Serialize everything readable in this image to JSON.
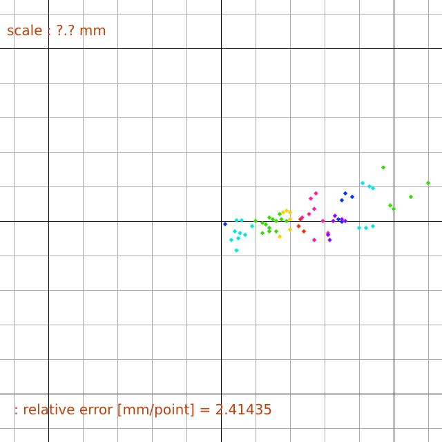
{
  "scale_text": "scale : ?.? mm",
  "error_text": ": relative error [mm/point] = 2.41435",
  "colors": {
    "grid": "#aaaaaa",
    "axis": "#000000",
    "text": "#c0410a"
  },
  "chart_data": {
    "type": "scatter",
    "title": "",
    "xlabel": "",
    "ylabel": "",
    "grid": true,
    "xlim": [
      -6.4,
      6.4
    ],
    "ylim": [
      -6.4,
      6.4
    ],
    "series": [
      {
        "color": "#0033ff",
        "points": [
          [
            0.12,
            -0.09
          ],
          [
            3.6,
            0.8
          ],
          [
            3.8,
            0.7
          ],
          [
            3.5,
            0.6
          ],
          [
            3.4,
            0.05
          ],
          [
            3.5,
            -0.02
          ]
        ]
      },
      {
        "color": "#00e5e5",
        "points": [
          [
            0.45,
            0.02
          ],
          [
            0.6,
            0.02
          ],
          [
            0.4,
            -0.3
          ],
          [
            0.55,
            -0.35
          ],
          [
            0.7,
            -0.4
          ],
          [
            0.3,
            -0.55
          ],
          [
            0.5,
            -0.5
          ],
          [
            0.9,
            -0.15
          ],
          [
            0.45,
            -0.85
          ],
          [
            4.1,
            1.1
          ],
          [
            4.3,
            1.0
          ],
          [
            4.4,
            0.95
          ],
          [
            4.0,
            -0.2
          ],
          [
            4.2,
            -0.2
          ],
          [
            4.4,
            -0.15
          ]
        ]
      },
      {
        "color": "#33dd00",
        "points": [
          [
            1.0,
            0.0
          ],
          [
            1.2,
            -0.05
          ],
          [
            1.4,
            0.1
          ],
          [
            1.4,
            -0.2
          ],
          [
            1.6,
            0.0
          ],
          [
            1.7,
            0.2
          ],
          [
            1.75,
            0.05
          ],
          [
            1.9,
            0.0
          ],
          [
            1.2,
            -0.35
          ],
          [
            1.4,
            -0.3
          ],
          [
            1.6,
            -0.3
          ],
          [
            1.5,
            0.05
          ],
          [
            1.3,
            -0.1
          ],
          [
            4.7,
            1.55
          ],
          [
            4.9,
            0.45
          ],
          [
            5.0,
            0.35
          ],
          [
            5.5,
            0.7
          ],
          [
            6.0,
            1.1
          ]
        ]
      },
      {
        "color": "#ffcc00",
        "points": [
          [
            1.7,
            -0.45
          ],
          [
            1.8,
            0.25
          ],
          [
            1.9,
            0.3
          ],
          [
            2.0,
            0.25
          ],
          [
            2.0,
            0.05
          ],
          [
            2.0,
            -0.25
          ]
        ]
      },
      {
        "color": "#ff2a00",
        "points": [
          [
            2.25,
            -0.15
          ],
          [
            2.4,
            -0.3
          ],
          [
            2.3,
            0.05
          ]
        ]
      },
      {
        "color": "#ff1aaa",
        "points": [
          [
            2.6,
            0.65
          ],
          [
            2.75,
            0.8
          ],
          [
            2.7,
            0.35
          ],
          [
            2.55,
            0.2
          ],
          [
            2.35,
            0.1
          ],
          [
            2.95,
            0.0
          ],
          [
            3.1,
            -0.35
          ],
          [
            2.7,
            -0.55
          ]
        ]
      },
      {
        "color": "#9900ff",
        "points": [
          [
            3.3,
            0.15
          ],
          [
            3.25,
            0.0
          ],
          [
            3.1,
            -0.4
          ],
          [
            3.15,
            -0.55
          ],
          [
            3.5,
            0.05
          ],
          [
            3.6,
            0.0
          ]
        ]
      }
    ]
  }
}
